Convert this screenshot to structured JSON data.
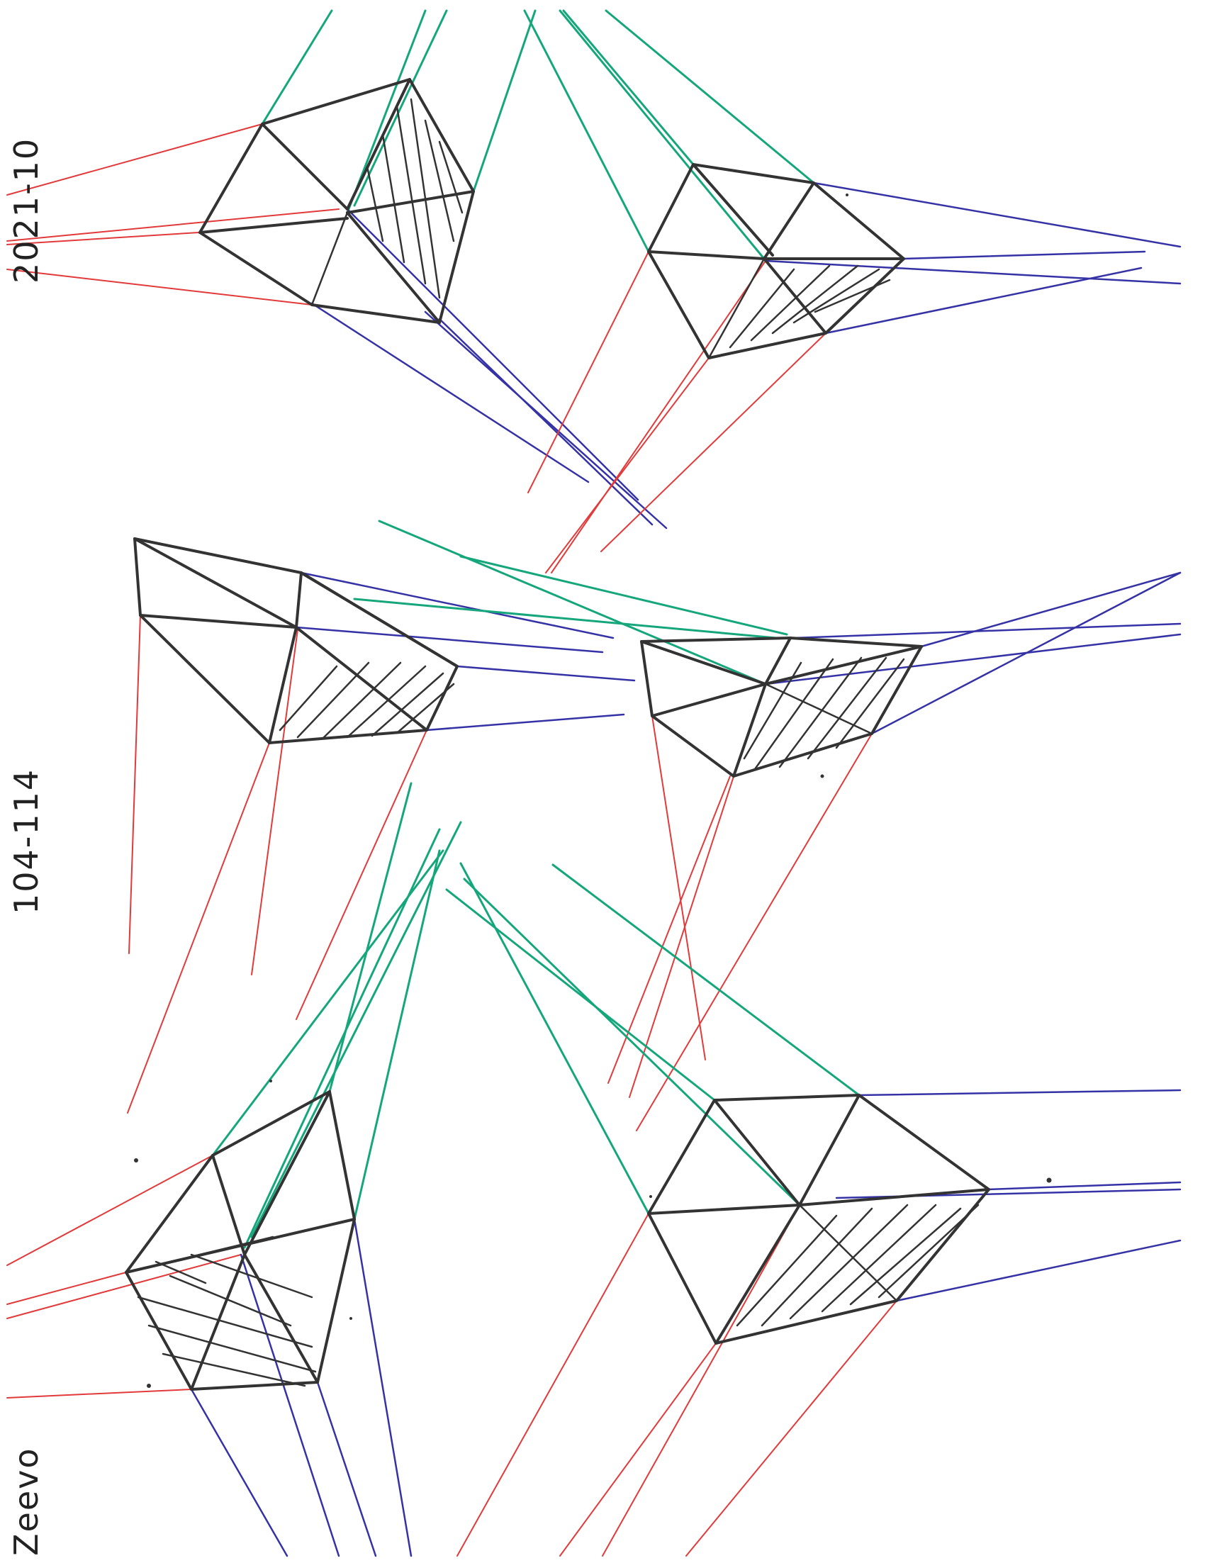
{
  "page": {
    "label_date": "2021-10",
    "label_exercise": "104-114",
    "label_author": "Zeevo"
  },
  "ink_colors": {
    "vanishing_line_x": "#e23a3a",
    "vanishing_line_y": "#15a77b",
    "vanishing_line_z": "#3532a6",
    "box_edges": "#333333"
  },
  "drawing": {
    "subject": "boxes in three-point perspective",
    "box_count": 6
  }
}
